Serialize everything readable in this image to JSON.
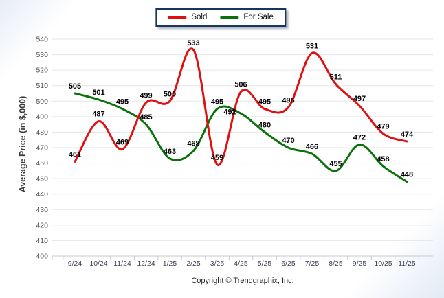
{
  "chart_data": {
    "type": "line",
    "title": "",
    "ylabel": "Average Price (in $,000)",
    "xlabel": "",
    "footer": "Copyright © Trendgraphix, Inc.",
    "categories": [
      "9/24",
      "10/24",
      "11/24",
      "12/24",
      "1/25",
      "2/25",
      "3/25",
      "4/25",
      "5/25",
      "6/25",
      "7/25",
      "8/25",
      "9/25",
      "10/25",
      "11/25"
    ],
    "series": [
      {
        "name": "Sold",
        "color": "#e01010",
        "values": [
          461,
          487,
          469,
          499,
          500,
          533,
          459,
          506,
          495,
          496,
          531,
          511,
          497,
          479,
          474
        ]
      },
      {
        "name": "For Sale",
        "color": "#0a720a",
        "values": [
          505,
          501,
          495,
          485,
          463,
          468,
          495,
          492,
          480,
          470,
          466,
          455,
          472,
          458,
          448
        ]
      }
    ],
    "ylim": [
      400,
      540
    ],
    "ytick_step": 10,
    "grid": "horizontal-only",
    "legend_position": "top-center",
    "line_smoothing": "spline",
    "label_offsets": [
      {},
      {
        "7": [
          -16,
          8
        ]
      }
    ]
  }
}
